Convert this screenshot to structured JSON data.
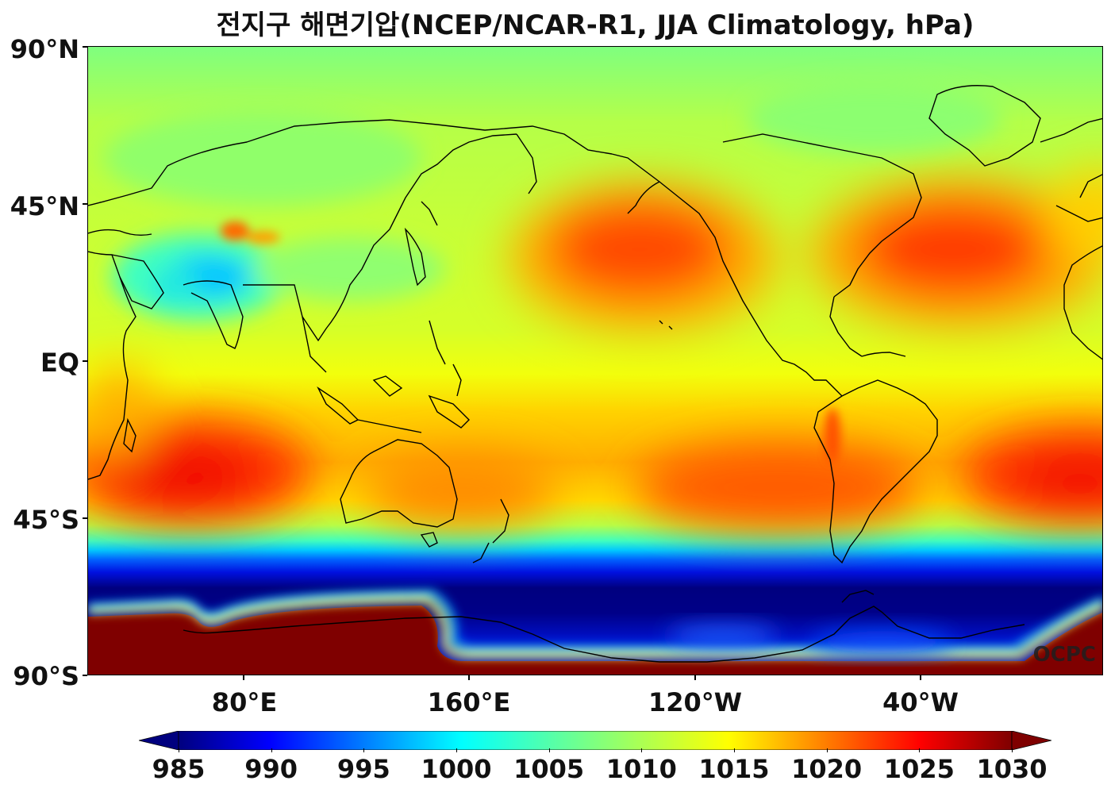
{
  "title": "전지구 해면기압(NCEP/NCAR-R1, JJA Climatology, hPa)",
  "watermark": "OCPC",
  "lat_labels": [
    "90°N",
    "45°N",
    "EQ",
    "45°S",
    "90°S"
  ],
  "lon_labels": [
    "80°E",
    "160°E",
    "120°W",
    "40°W"
  ],
  "colorbar": {
    "ticks": [
      "985",
      "990",
      "995",
      "1000",
      "1005",
      "1010",
      "1015",
      "1020",
      "1025",
      "1030"
    ],
    "min": 985,
    "max": 1030,
    "extend": "both",
    "colormap": "jet",
    "colors": [
      "#00007f",
      "#0000ff",
      "#007fff",
      "#00ffff",
      "#7fff7f",
      "#ffff00",
      "#ff7f00",
      "#ff0000",
      "#7f0000"
    ]
  },
  "map": {
    "projection": "equirectangular",
    "central_longitude": 180,
    "lon_range": [
      30,
      390
    ],
    "lat_range": [
      -90,
      90
    ],
    "variable": "sea level pressure",
    "features": [
      {
        "name": "north-pacific-high",
        "lon": 215,
        "lat": 38,
        "value": 1025
      },
      {
        "name": "azores-high",
        "lon": 320,
        "lat": 37,
        "value": 1026
      },
      {
        "name": "south-indian-high",
        "lon": 65,
        "lat": -30,
        "value": 1026
      },
      {
        "name": "south-pacific-high",
        "lon": 265,
        "lat": -30,
        "value": 1022
      },
      {
        "name": "south-atlantic-high",
        "lon": 350,
        "lat": -28,
        "value": 1023
      },
      {
        "name": "australian-high",
        "lon": 130,
        "lat": -28,
        "value": 1021
      },
      {
        "name": "asian-monsoon-low",
        "lon": 60,
        "lat": 28,
        "value": 1000
      },
      {
        "name": "circumpolar-trough",
        "lon": 180,
        "lat": -63,
        "value": 985
      },
      {
        "name": "antarctic-high",
        "lon": 80,
        "lat": -80,
        "value": 1030
      }
    ]
  }
}
